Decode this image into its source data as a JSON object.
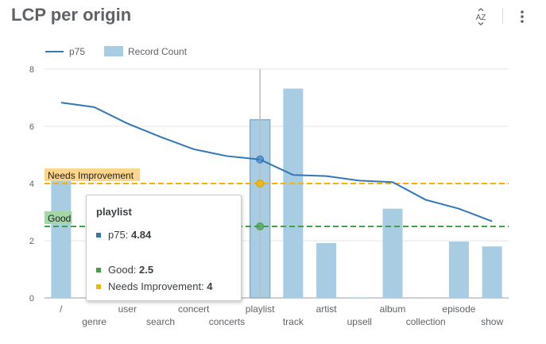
{
  "header": {
    "title": "LCP per origin",
    "sort_icon": "sort-az-icon",
    "menu_icon": "more-vert-icon"
  },
  "chart_data": {
    "type": "bar",
    "title": "LCP per origin",
    "categories": [
      "/",
      "genre",
      "user",
      "search",
      "concert",
      "concerts",
      "playlist",
      "track",
      "artist",
      "upsell",
      "album",
      "collection",
      "episode",
      "show"
    ],
    "series": [
      {
        "name": "p75",
        "kind": "line",
        "color": "#3377b8",
        "values": [
          6.83,
          6.67,
          6.1,
          5.63,
          5.2,
          4.96,
          4.84,
          4.3,
          4.26,
          4.1,
          4.05,
          3.43,
          3.12,
          2.68
        ]
      },
      {
        "name": "Record Count",
        "kind": "bar",
        "color": "#a8cde3",
        "values": [
          4.3,
          0,
          0,
          0,
          0,
          0,
          6.23,
          7.32,
          1.92,
          0.02,
          3.12,
          0,
          1.97,
          1.8
        ]
      }
    ],
    "reference_lines": [
      {
        "label": "Needs Improvement",
        "value": 4,
        "color": "#f5b400",
        "label_bg": "#fcd58c"
      },
      {
        "label": "Good",
        "value": 2.5,
        "color": "#43a047",
        "label_bg": "#a5d6a7"
      }
    ],
    "yticks": [
      "0",
      "2",
      "4",
      "6",
      "8"
    ],
    "ylim": [
      0,
      8
    ],
    "grid": true,
    "legend": "top-left",
    "tooltip": {
      "category": "playlist",
      "p75_label": "p75: ",
      "p75_value": "4.84",
      "good_label": "Good: ",
      "good_value": "2.5",
      "ni_label": "Needs Improvement: ",
      "ni_value": "4"
    }
  }
}
